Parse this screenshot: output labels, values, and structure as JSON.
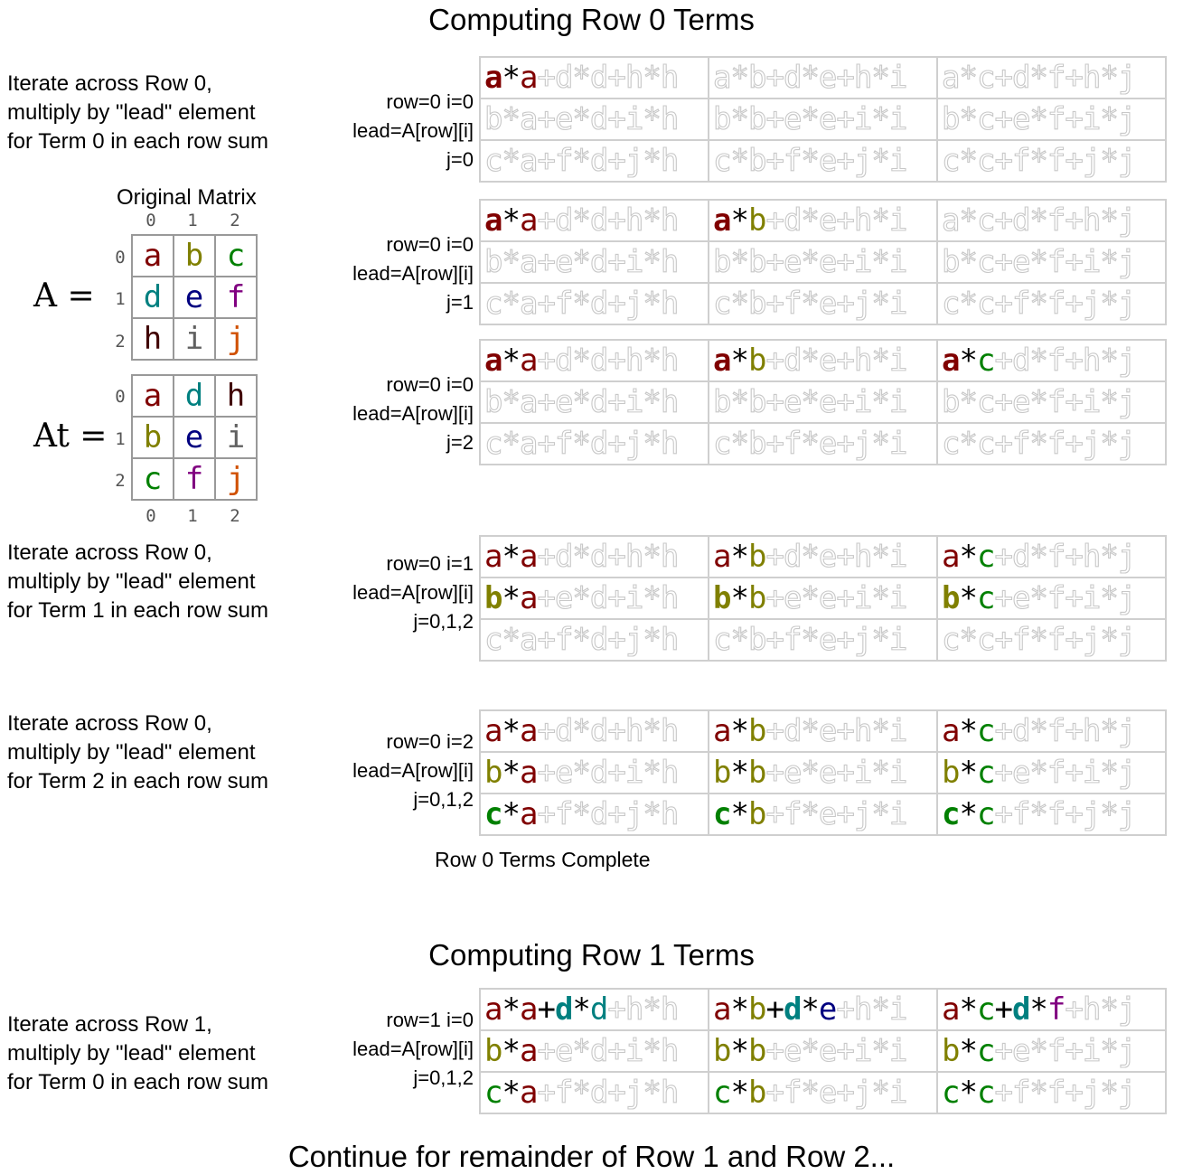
{
  "titles": {
    "row0": "Computing Row 0 Terms",
    "row1": "Computing Row 1 Terms",
    "footer": "Continue for remainder of Row 1 and Row 2...",
    "row0_complete": "Row 0 Terms Complete"
  },
  "colors": {
    "a": "#800000",
    "b": "#808000",
    "c": "#008000",
    "d": "#008080",
    "e": "#000080",
    "f": "#800080",
    "h": "#400000",
    "i": "#606060",
    "j": "#d05000",
    "op": "#000000",
    "dim_stroke": "#c8c8c8",
    "grid": "#cfcfcf"
  },
  "original_matrix": {
    "label": "Original Matrix",
    "A_label": "A =",
    "At_label": "At =",
    "col_indices": [
      "0",
      "1",
      "2"
    ],
    "row_indices": [
      "0",
      "1",
      "2"
    ],
    "A": [
      [
        "a",
        "b",
        "c"
      ],
      [
        "d",
        "e",
        "f"
      ],
      [
        "h",
        "i",
        "j"
      ]
    ],
    "At": [
      [
        "a",
        "d",
        "h"
      ],
      [
        "b",
        "e",
        "i"
      ],
      [
        "c",
        "f",
        "j"
      ]
    ]
  },
  "descriptions": [
    {
      "lines": [
        "Iterate across Row 0,",
        "multiply by \"lead\" element",
        "for Term 0 in each row sum"
      ]
    },
    {
      "lines": [
        "Iterate across Row 0,",
        "multiply by \"lead\" element",
        "for Term 1 in each row sum"
      ]
    },
    {
      "lines": [
        "Iterate across Row 0,",
        "multiply by \"lead\" element",
        "for Term 2 in each row sum"
      ]
    },
    {
      "lines": [
        "Iterate across Row 1,",
        "multiply by \"lead\" element",
        "for Term 0 in each row sum"
      ]
    }
  ],
  "steps": [
    {
      "meta": [
        "row=0 i=0",
        "lead=A[row][i]",
        "j=0"
      ],
      "lit": [
        [
          1,
          0,
          0
        ],
        [
          0,
          0,
          0
        ],
        [
          0,
          0,
          0
        ]
      ],
      "boldcol": 0,
      "boldcells": [
        [
          0,
          0
        ]
      ]
    },
    {
      "meta": [
        "row=0 i=0",
        "lead=A[row][i]",
        "j=1"
      ],
      "lit": [
        [
          1,
          1,
          0
        ],
        [
          0,
          0,
          0
        ],
        [
          0,
          0,
          0
        ]
      ],
      "boldcol": 0,
      "boldcells": [
        [
          0,
          0
        ],
        [
          0,
          1
        ]
      ]
    },
    {
      "meta": [
        "row=0 i=0",
        "lead=A[row][i]",
        "j=2"
      ],
      "lit": [
        [
          1,
          1,
          1
        ],
        [
          0,
          0,
          0
        ],
        [
          0,
          0,
          0
        ]
      ],
      "boldcol": 0,
      "boldcells": [
        [
          0,
          0
        ],
        [
          0,
          1
        ],
        [
          0,
          2
        ]
      ]
    },
    {
      "meta": [
        "row=0 i=1",
        "lead=A[row][i]",
        "j=0,1,2"
      ],
      "lit": [
        [
          1,
          1,
          1
        ],
        [
          1,
          1,
          1
        ],
        [
          0,
          0,
          0
        ]
      ],
      "boldcol": 1,
      "boldcells": [
        [
          1,
          0
        ],
        [
          1,
          1
        ],
        [
          1,
          2
        ]
      ]
    },
    {
      "meta": [
        "row=0 i=2",
        "lead=A[row][i]",
        "j=0,1,2"
      ],
      "lit": [
        [
          1,
          1,
          1
        ],
        [
          1,
          1,
          1
        ],
        [
          1,
          1,
          1
        ]
      ],
      "boldcol": 2,
      "boldcells": [
        [
          2,
          0
        ],
        [
          2,
          1
        ],
        [
          2,
          2
        ]
      ]
    },
    {
      "meta": [
        "row=1 i=0",
        "lead=A[row][i]",
        "j=0,1,2"
      ],
      "lit": [
        [
          2,
          2,
          2
        ],
        [
          1,
          1,
          1
        ],
        [
          1,
          1,
          1
        ]
      ],
      "boldcol": 1,
      "boldcells": [
        [
          0,
          0
        ],
        [
          0,
          1
        ],
        [
          0,
          2
        ]
      ]
    }
  ],
  "cells": [
    [
      "a*a+d*d+h*h",
      "a*b+d*e+h*i",
      "a*c+d*f+h*j"
    ],
    [
      "b*a+e*d+i*h",
      "b*b+e*e+i*i",
      "b*c+e*f+i*j"
    ],
    [
      "c*a+f*d+j*h",
      "c*b+f*e+j*i",
      "c*c+f*f+j*j"
    ]
  ]
}
